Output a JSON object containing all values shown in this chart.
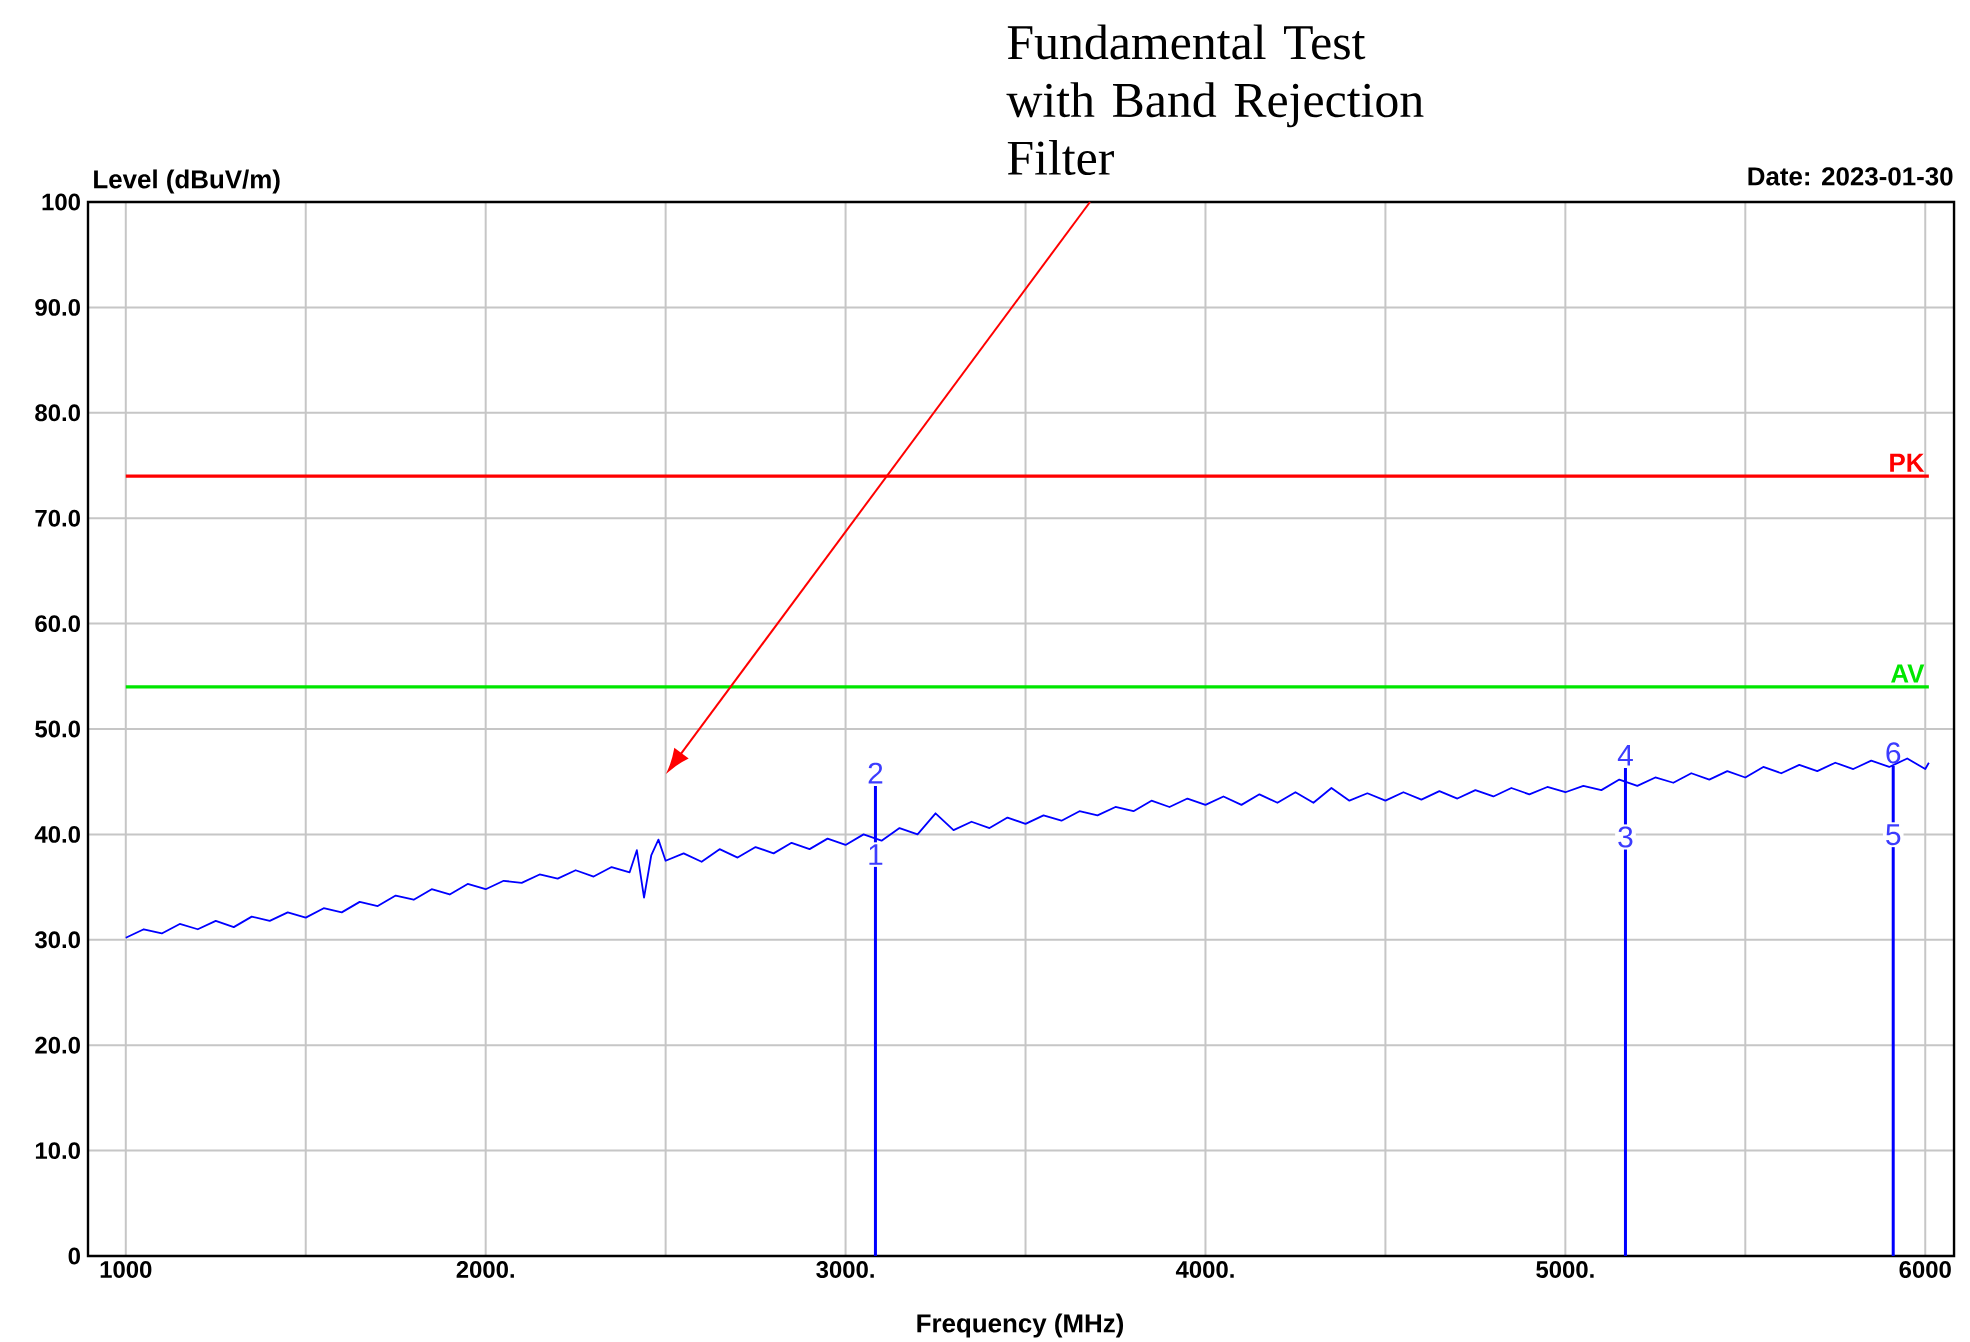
{
  "chart_data": {
    "type": "line",
    "xlabel": "Frequency (MHz)",
    "ylabel": "Level (dBuV/m)",
    "annotations": [
      "Fundamental Test with Band Rejection Filter",
      "Date: 2023-01-30",
      "1",
      "2",
      "3",
      "4",
      "5",
      "6"
    ],
    "xlim": [
      895,
      6080
    ],
    "ylim": [
      0,
      100
    ],
    "xticks": [
      1000,
      {
        "value": 1500,
        "label": null
      },
      {
        "value": 2000,
        "label": "2000."
      },
      {
        "value": 2500,
        "label": null
      },
      {
        "value": 3000,
        "label": "3000."
      },
      {
        "value": 3500,
        "label": null
      },
      {
        "value": 4000,
        "label": "4000."
      },
      {
        "value": 4500,
        "label": null
      },
      {
        "value": 5000,
        "label": "5000."
      },
      {
        "value": 5500,
        "label": null
      },
      6000
    ],
    "yticks": [
      0,
      {
        "value": 10,
        "label": "10.0"
      },
      {
        "value": 20,
        "label": "20.0"
      },
      {
        "value": 30,
        "label": "30.0"
      },
      {
        "value": 40,
        "label": "40.0"
      },
      {
        "value": 50,
        "label": "50.0"
      },
      {
        "value": 60,
        "label": "60.0"
      },
      {
        "value": 70,
        "label": "70.0"
      },
      {
        "value": 80,
        "label": "80.0"
      },
      {
        "value": 90,
        "label": "90.0"
      },
      100
    ],
    "grid": true,
    "ref_lines": [
      {
        "axis": "y",
        "value": 74,
        "label": "PK",
        "color": "#ff0000"
      },
      {
        "axis": "y",
        "value": 54,
        "label": "AV",
        "color": "#00e600"
      }
    ],
    "series": [
      {
        "color": "#0000ff",
        "x": [
          1000,
          1050,
          1100,
          1150,
          1200,
          1250,
          1300,
          1350,
          1400,
          1450,
          1500,
          1550,
          1600,
          1650,
          1700,
          1750,
          1800,
          1850,
          1900,
          1950,
          2000,
          2050,
          2100,
          2150,
          2200,
          2250,
          2300,
          2350,
          2400,
          2420,
          2440,
          2460,
          2480,
          2500,
          2550,
          2600,
          2650,
          2700,
          2750,
          2800,
          2850,
          2900,
          2950,
          3000,
          3050,
          3100,
          3150,
          3200,
          3250,
          3300,
          3350,
          3400,
          3450,
          3500,
          3550,
          3600,
          3650,
          3700,
          3750,
          3800,
          3850,
          3900,
          3950,
          4000,
          4050,
          4100,
          4150,
          4200,
          4250,
          4300,
          4350,
          4400,
          4450,
          4500,
          4550,
          4600,
          4650,
          4700,
          4750,
          4800,
          4850,
          4900,
          4950,
          5000,
          5050,
          5100,
          5150,
          5200,
          5250,
          5300,
          5350,
          5400,
          5450,
          5500,
          5550,
          5600,
          5650,
          5700,
          5750,
          5800,
          5850,
          5900,
          5950,
          6000,
          6010
        ],
        "values": [
          30.2,
          31.0,
          30.6,
          31.5,
          31.0,
          31.8,
          31.2,
          32.2,
          31.8,
          32.6,
          32.1,
          33.0,
          32.6,
          33.6,
          33.2,
          34.2,
          33.8,
          34.8,
          34.3,
          35.3,
          34.8,
          35.6,
          35.4,
          36.2,
          35.8,
          36.6,
          36.0,
          36.9,
          36.4,
          38.5,
          34.0,
          38.0,
          39.5,
          37.5,
          38.2,
          37.4,
          38.6,
          37.8,
          38.8,
          38.2,
          39.2,
          38.6,
          39.6,
          39.0,
          40.0,
          39.4,
          40.6,
          40.0,
          42.0,
          40.4,
          41.2,
          40.6,
          41.6,
          41.0,
          41.8,
          41.3,
          42.2,
          41.8,
          42.6,
          42.2,
          43.2,
          42.6,
          43.4,
          42.8,
          43.6,
          42.8,
          43.8,
          43.0,
          44.0,
          43.0,
          44.4,
          43.2,
          43.9,
          43.2,
          44.0,
          43.3,
          44.1,
          43.4,
          44.2,
          43.6,
          44.4,
          43.8,
          44.5,
          44.0,
          44.6,
          44.2,
          45.2,
          44.6,
          45.4,
          44.9,
          45.8,
          45.2,
          46.0,
          45.4,
          46.4,
          45.8,
          46.6,
          46.0,
          46.8,
          46.2,
          47.0,
          46.4,
          47.2,
          46.2,
          46.8
        ]
      },
      {
        "type": "bar",
        "color": "#0000ff",
        "x": [
          3083,
          5167,
          5911
        ],
        "values": [
          44.6,
          46.3,
          46.5
        ]
      }
    ]
  }
}
